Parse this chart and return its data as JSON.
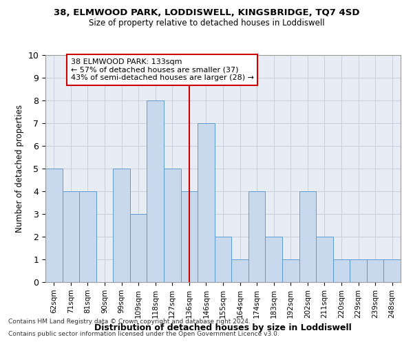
{
  "title": "38, ELMWOOD PARK, LODDISWELL, KINGSBRIDGE, TQ7 4SD",
  "subtitle": "Size of property relative to detached houses in Loddiswell",
  "xlabel": "Distribution of detached houses by size in Loddiswell",
  "ylabel": "Number of detached properties",
  "categories": [
    "62sqm",
    "71sqm",
    "81sqm",
    "90sqm",
    "99sqm",
    "109sqm",
    "118sqm",
    "127sqm",
    "136sqm",
    "146sqm",
    "155sqm",
    "164sqm",
    "174sqm",
    "183sqm",
    "192sqm",
    "202sqm",
    "211sqm",
    "220sqm",
    "229sqm",
    "239sqm",
    "248sqm"
  ],
  "values": [
    5,
    4,
    4,
    0,
    5,
    3,
    8,
    5,
    4,
    7,
    2,
    1,
    4,
    2,
    1,
    4,
    2,
    1,
    1,
    1,
    1
  ],
  "bar_color": "#c9d9ed",
  "bar_edge_color": "#5b9bd5",
  "vline_index": 8,
  "vline_color": "#cc0000",
  "annotation_text": "38 ELMWOOD PARK: 133sqm\n← 57% of detached houses are smaller (37)\n43% of semi-detached houses are larger (28) →",
  "annotation_box_color": "#ffffff",
  "annotation_box_edge_color": "#cc0000",
  "ylim": [
    0,
    10
  ],
  "yticks": [
    0,
    1,
    2,
    3,
    4,
    5,
    6,
    7,
    8,
    9,
    10
  ],
  "grid_color": "#c8d0de",
  "bg_color": "#e8edf5",
  "footer1": "Contains HM Land Registry data © Crown copyright and database right 2024.",
  "footer2": "Contains public sector information licensed under the Open Government Licence v3.0."
}
